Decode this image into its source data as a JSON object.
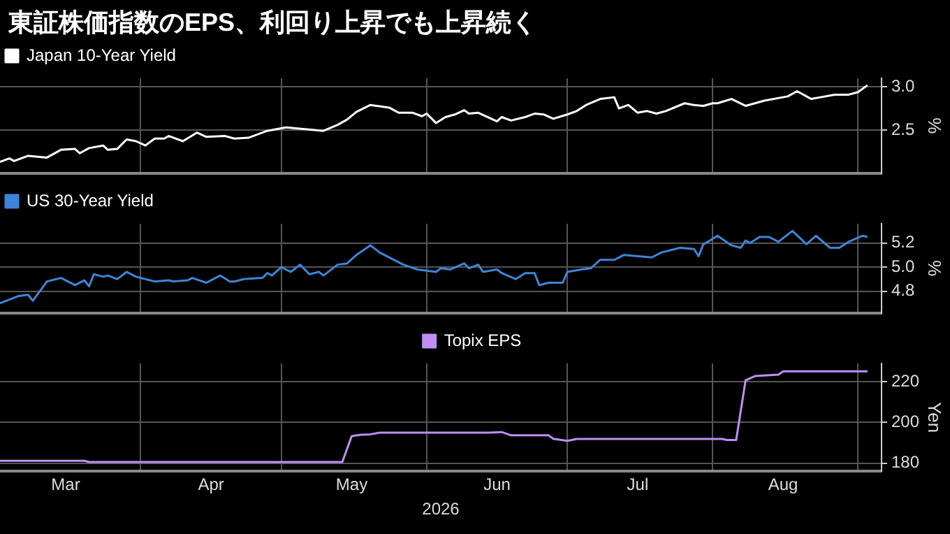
{
  "chart_data": [
    {
      "type": "line",
      "title": "東証株価指数のEPS、利回り上昇でも上昇続く",
      "ylabel": "%",
      "legend": "top left",
      "grid": true,
      "tick_labels": "y",
      "xlim": [
        "2026-03-02",
        "2026-09-06"
      ],
      "xticks": [
        {
          "value": "2026-04-01",
          "label": null
        },
        {
          "value": "2026-05-01",
          "label": null
        },
        {
          "value": "2026-06-01",
          "label": null
        },
        {
          "value": "2026-07-01",
          "label": null
        },
        {
          "value": "2026-08-01",
          "label": null
        },
        {
          "value": "2026-09-01",
          "label": null
        }
      ],
      "ylim": [
        2.0,
        3.1
      ],
      "yticks": [
        2.5,
        {
          "value": 3,
          "label": "3.0"
        }
      ],
      "x": [
        "2026-03-02",
        "2026-03-04",
        "2026-03-05",
        "2026-03-08",
        "2026-03-12",
        "2026-03-15",
        "2026-03-18",
        "2026-03-19",
        "2026-03-21",
        "2026-03-24",
        "2026-03-25",
        "2026-03-27",
        "2026-03-29",
        "2026-03-31",
        "2026-04-02",
        "2026-04-04",
        "2026-04-06",
        "2026-04-07",
        "2026-04-10",
        "2026-04-13",
        "2026-04-15",
        "2026-04-19",
        "2026-04-21",
        "2026-04-24",
        "2026-04-28",
        "2026-05-02",
        "2026-05-10",
        "2026-05-13",
        "2026-05-15",
        "2026-05-17",
        "2026-05-20",
        "2026-05-24",
        "2026-05-26",
        "2026-05-29",
        "2026-05-31",
        "2026-06-01",
        "2026-06-03",
        "2026-06-05",
        "2026-06-07",
        "2026-06-09",
        "2026-06-10",
        "2026-06-12",
        "2026-06-16",
        "2026-06-17",
        "2026-06-19",
        "2026-06-22",
        "2026-06-24",
        "2026-06-26",
        "2026-06-28",
        "2026-07-01",
        "2026-07-03",
        "2026-07-05",
        "2026-07-08",
        "2026-07-11",
        "2026-07-12",
        "2026-07-14",
        "2026-07-16",
        "2026-07-18",
        "2026-07-20",
        "2026-07-22",
        "2026-07-26",
        "2026-07-28",
        "2026-07-30",
        "2026-08-01",
        "2026-08-02",
        "2026-08-05",
        "2026-08-08",
        "2026-08-12",
        "2026-08-17",
        "2026-08-19",
        "2026-08-22",
        "2026-08-24",
        "2026-08-27",
        "2026-08-30",
        "2026-09-01",
        "2026-09-03"
      ],
      "series": [
        {
          "name": "Japan 10-Year Yield",
          "color": "#ffffff",
          "values": [
            2.13,
            2.17,
            2.14,
            2.2,
            2.18,
            2.27,
            2.28,
            2.23,
            2.29,
            2.32,
            2.27,
            2.28,
            2.39,
            2.37,
            2.32,
            2.4,
            2.4,
            2.43,
            2.37,
            2.47,
            2.42,
            2.43,
            2.4,
            2.41,
            2.49,
            2.53,
            2.49,
            2.56,
            2.62,
            2.71,
            2.79,
            2.76,
            2.7,
            2.7,
            2.66,
            2.69,
            2.58,
            2.65,
            2.68,
            2.73,
            2.69,
            2.7,
            2.6,
            2.65,
            2.61,
            2.65,
            2.69,
            2.68,
            2.63,
            2.68,
            2.72,
            2.79,
            2.86,
            2.88,
            2.75,
            2.79,
            2.7,
            2.72,
            2.69,
            2.72,
            2.81,
            2.79,
            2.78,
            2.81,
            2.81,
            2.86,
            2.78,
            2.84,
            2.89,
            2.95,
            2.86,
            2.88,
            2.91,
            2.91,
            2.94,
            3.02
          ]
        }
      ]
    },
    {
      "type": "line",
      "ylabel": "%",
      "legend": "top left",
      "grid": true,
      "tick_labels": "y",
      "xlim": [
        "2026-03-02",
        "2026-09-06"
      ],
      "xticks": [
        {
          "value": "2026-04-01",
          "label": null
        },
        {
          "value": "2026-05-01",
          "label": null
        },
        {
          "value": "2026-06-01",
          "label": null
        },
        {
          "value": "2026-07-01",
          "label": null
        },
        {
          "value": "2026-08-01",
          "label": null
        },
        {
          "value": "2026-09-01",
          "label": null
        }
      ],
      "ylim": [
        4.62,
        5.36
      ],
      "yticks": [
        4.8,
        {
          "value": 5,
          "label": "5.0"
        },
        5.2
      ],
      "x": [
        "2026-03-02",
        "2026-03-06",
        "2026-03-08",
        "2026-03-09",
        "2026-03-12",
        "2026-03-15",
        "2026-03-18",
        "2026-03-20",
        "2026-03-21",
        "2026-03-22",
        "2026-03-24",
        "2026-03-25",
        "2026-03-27",
        "2026-03-29",
        "2026-03-31",
        "2026-04-01",
        "2026-04-04",
        "2026-04-07",
        "2026-04-08",
        "2026-04-11",
        "2026-04-12",
        "2026-04-15",
        "2026-04-18",
        "2026-04-20",
        "2026-04-21",
        "2026-04-23",
        "2026-04-27",
        "2026-04-28",
        "2026-04-29",
        "2026-05-01",
        "2026-05-03",
        "2026-05-05",
        "2026-05-07",
        "2026-05-09",
        "2026-05-10",
        "2026-05-13",
        "2026-05-15",
        "2026-05-17",
        "2026-05-20",
        "2026-05-22",
        "2026-05-27",
        "2026-05-30",
        "2026-06-03",
        "2026-06-04",
        "2026-06-06",
        "2026-06-09",
        "2026-06-10",
        "2026-06-12",
        "2026-06-13",
        "2026-06-16",
        "2026-06-17",
        "2026-06-20",
        "2026-06-22",
        "2026-06-24",
        "2026-06-25",
        "2026-06-27",
        "2026-06-30",
        "2026-07-01",
        "2026-07-04",
        "2026-07-06",
        "2026-07-08",
        "2026-07-11",
        "2026-07-13",
        "2026-07-16",
        "2026-07-19",
        "2026-07-21",
        "2026-07-25",
        "2026-07-28",
        "2026-07-29",
        "2026-07-30",
        "2026-07-31",
        "2026-08-02",
        "2026-08-05",
        "2026-08-07",
        "2026-08-08",
        "2026-08-09",
        "2026-08-11",
        "2026-08-13",
        "2026-08-15",
        "2026-08-18",
        "2026-08-21",
        "2026-08-23",
        "2026-08-26",
        "2026-08-28",
        "2026-08-30",
        "2026-09-02",
        "2026-09-03"
      ],
      "series": [
        {
          "name": "US 30-Year Yield",
          "color": "#3d85d6",
          "values": [
            4.7,
            4.76,
            4.77,
            4.72,
            4.88,
            4.91,
            4.85,
            4.89,
            4.84,
            4.94,
            4.92,
            4.93,
            4.9,
            4.96,
            4.92,
            4.91,
            4.88,
            4.89,
            4.88,
            4.89,
            4.91,
            4.87,
            4.93,
            4.88,
            4.88,
            4.9,
            4.91,
            4.95,
            4.93,
            5.0,
            4.96,
            5.02,
            4.94,
            4.96,
            4.93,
            5.02,
            5.03,
            5.1,
            5.18,
            5.12,
            5.02,
            4.98,
            4.96,
            4.99,
            4.98,
            5.03,
            4.99,
            5.02,
            4.96,
            4.98,
            4.95,
            4.9,
            4.95,
            4.95,
            4.85,
            4.87,
            4.87,
            4.96,
            4.98,
            4.99,
            5.06,
            5.06,
            5.1,
            5.09,
            5.08,
            5.12,
            5.16,
            5.15,
            5.09,
            5.19,
            5.21,
            5.26,
            5.18,
            5.16,
            5.22,
            5.2,
            5.25,
            5.25,
            5.21,
            5.3,
            5.19,
            5.26,
            5.16,
            5.16,
            5.21,
            5.26,
            5.25
          ]
        }
      ]
    },
    {
      "type": "line",
      "ylabel": "Yen",
      "xlabel": "2026",
      "legend": "top",
      "grid": true,
      "xlim": [
        "2026-03-02",
        "2026-09-06"
      ],
      "xticks": [
        {
          "value": "2026-03-16",
          "label": "Mar"
        },
        {
          "value": "2026-04-01",
          "label": null
        },
        {
          "value": "2026-04-16",
          "label": "Apr"
        },
        {
          "value": "2026-05-01",
          "label": null
        },
        {
          "value": "2026-05-16",
          "label": "May"
        },
        {
          "value": "2026-06-01",
          "label": null
        },
        {
          "value": "2026-06-16",
          "label": "Jun"
        },
        {
          "value": "2026-07-01",
          "label": null
        },
        {
          "value": "2026-07-16",
          "label": "Jul"
        },
        {
          "value": "2026-08-01",
          "label": null
        },
        {
          "value": "2026-08-16",
          "label": "Aug"
        },
        {
          "value": "2026-09-01",
          "label": null
        }
      ],
      "ylim": [
        176,
        229
      ],
      "yticks": [
        180,
        200,
        220
      ],
      "x": [
        "2026-03-02",
        "2026-03-20",
        "2026-03-21",
        "2026-05-14",
        "2026-05-16",
        "2026-05-18",
        "2026-05-20",
        "2026-05-22",
        "2026-06-14",
        "2026-06-17",
        "2026-06-19",
        "2026-06-27",
        "2026-06-28",
        "2026-07-01",
        "2026-07-03",
        "2026-08-03",
        "2026-08-04",
        "2026-08-06",
        "2026-08-08",
        "2026-08-10",
        "2026-08-15",
        "2026-08-16",
        "2026-09-03"
      ],
      "series": [
        {
          "name": "Topix EPS",
          "color": "#c08ef5",
          "values": [
            181.2,
            181.2,
            180.6,
            180.6,
            193.3,
            194.0,
            194.2,
            195.0,
            195.0,
            195.3,
            193.7,
            193.7,
            192.0,
            191.0,
            191.9,
            191.9,
            191.4,
            191.4,
            220.7,
            222.8,
            223.5,
            225.1,
            225.1
          ]
        }
      ]
    }
  ]
}
